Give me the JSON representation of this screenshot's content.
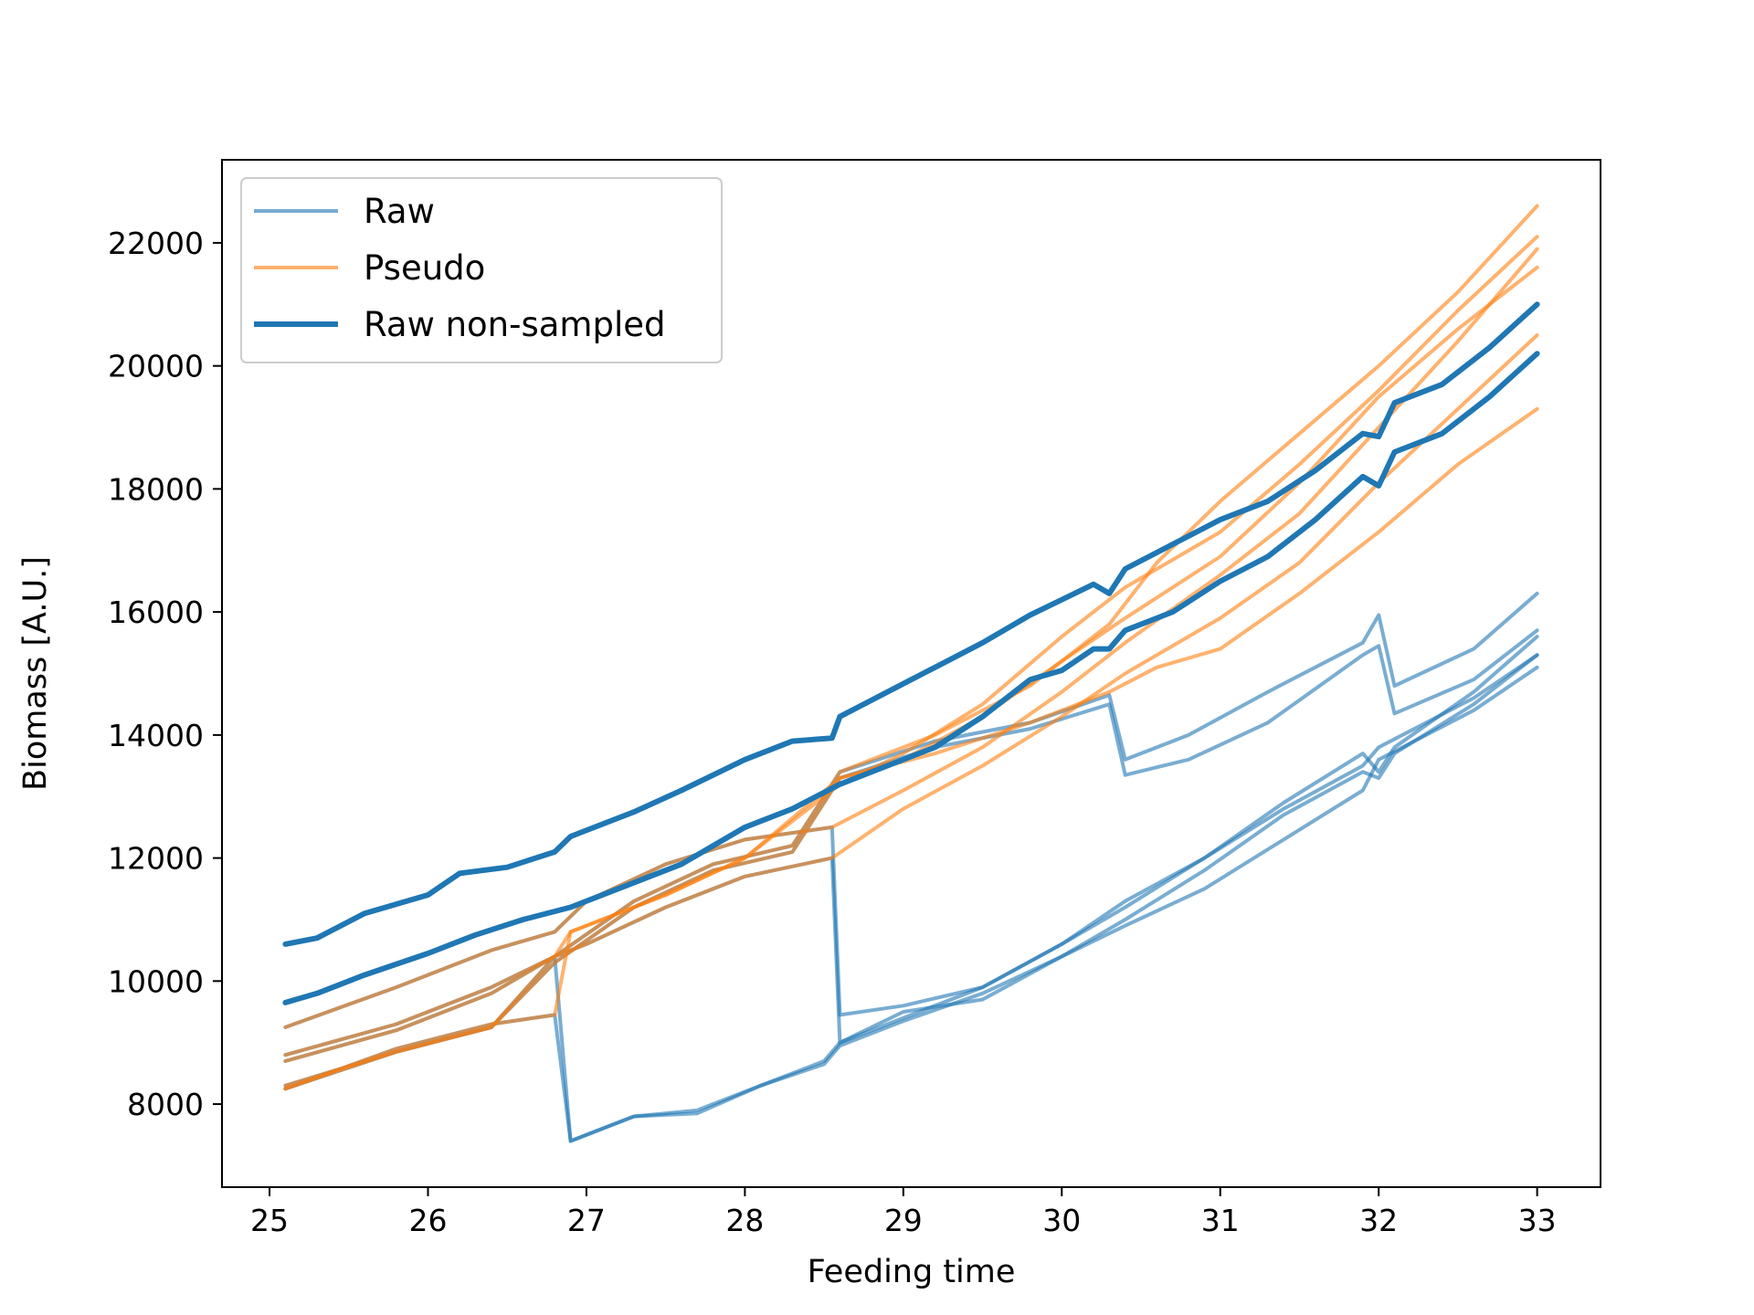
{
  "chart_data": {
    "type": "line",
    "xlabel": "Feeding time",
    "ylabel": "Biomass [A.U.]",
    "xlim": [
      24.7,
      33.4
    ],
    "ylim": [
      6650,
      23350
    ],
    "xticks": [
      25,
      26,
      27,
      28,
      29,
      30,
      31,
      32,
      33
    ],
    "yticks": [
      8000,
      10000,
      12000,
      14000,
      16000,
      18000,
      20000,
      22000
    ],
    "grid": false,
    "legend": {
      "placement": "top-left",
      "entries": [
        {
          "label": "Raw",
          "color": "#77aad4",
          "style": "thin"
        },
        {
          "label": "Pseudo",
          "color": "#fbb06c",
          "style": "thin"
        },
        {
          "label": "Raw non-sampled",
          "color": "#1f77b4",
          "style": "thick"
        }
      ]
    },
    "colors": {
      "raw": "#1f77b4",
      "pseudo": "#ff7f0e",
      "raw_non_sampled": "#1f77b4"
    },
    "series": [
      {
        "name": "Raw",
        "kind": "raw",
        "x": [
          25.1,
          25.8,
          26.4,
          26.8,
          26.9,
          27.3,
          27.7,
          28.1,
          28.5,
          28.6,
          29.0,
          29.5,
          30.0,
          30.4,
          30.9,
          31.4,
          31.9,
          32.0,
          32.1,
          32.6,
          33.0
        ],
        "y": [
          8800,
          9300,
          9900,
          10400,
          7400,
          7800,
          7850,
          8300,
          8700,
          9000,
          9400,
          9900,
          10600,
          11200,
          12000,
          12900,
          13700,
          13400,
          13800,
          14700,
          15600
        ]
      },
      {
        "name": "Raw",
        "kind": "raw",
        "x": [
          25.1,
          25.8,
          26.4,
          26.8,
          26.9,
          27.3,
          27.7,
          28.1,
          28.5,
          28.6,
          29.0,
          29.5,
          30.0,
          30.4,
          30.9,
          31.4,
          31.9,
          32.0,
          32.1,
          32.6,
          33.0
        ],
        "y": [
          8250,
          8900,
          9300,
          9450,
          7400,
          7800,
          7900,
          8300,
          8650,
          8950,
          9350,
          9800,
          10400,
          11000,
          11800,
          12700,
          13400,
          13300,
          13700,
          14500,
          15300
        ]
      },
      {
        "name": "Raw",
        "kind": "raw",
        "x": [
          25.1,
          25.8,
          26.4,
          26.8,
          27.0,
          27.5,
          28.0,
          28.55,
          28.6,
          29.0,
          29.5,
          30.0,
          30.4,
          30.9,
          31.4,
          31.9,
          32.0,
          32.6,
          33.0
        ],
        "y": [
          9250,
          9900,
          10500,
          10800,
          11300,
          11900,
          12300,
          12500,
          9450,
          9600,
          9900,
          10600,
          11300,
          12000,
          12800,
          13500,
          13800,
          14600,
          15300
        ]
      },
      {
        "name": "Raw",
        "kind": "raw",
        "x": [
          25.1,
          25.8,
          26.4,
          26.8,
          27.0,
          27.5,
          28.0,
          28.55,
          28.6,
          29.0,
          29.5,
          30.0,
          30.4,
          30.9,
          31.4,
          31.9,
          32.0,
          32.6,
          33.0
        ],
        "y": [
          8700,
          9200,
          9800,
          10400,
          10600,
          11200,
          11700,
          12000,
          9000,
          9500,
          9700,
          10400,
          10900,
          11500,
          12300,
          13100,
          13600,
          14400,
          15100
        ]
      },
      {
        "name": "Raw",
        "kind": "raw",
        "x": [
          25.1,
          25.8,
          26.4,
          26.8,
          27.3,
          27.8,
          28.3,
          28.6,
          29.2,
          29.8,
          30.3,
          30.4,
          30.8,
          31.3,
          31.9,
          32.0,
          32.1,
          32.6,
          33.0
        ],
        "y": [
          8250,
          8850,
          9250,
          10400,
          11300,
          11900,
          12200,
          13400,
          13900,
          14200,
          14650,
          13600,
          14000,
          14700,
          15500,
          15950,
          14800,
          15400,
          16300
        ]
      },
      {
        "name": "Raw",
        "kind": "raw",
        "x": [
          25.1,
          25.8,
          26.4,
          26.8,
          27.3,
          27.8,
          28.3,
          28.6,
          29.2,
          29.8,
          30.3,
          30.4,
          30.8,
          31.3,
          31.9,
          32.0,
          32.1,
          32.6,
          33.0
        ],
        "y": [
          8300,
          8850,
          9250,
          10300,
          11200,
          11800,
          12100,
          13300,
          13800,
          14100,
          14500,
          13350,
          13600,
          14200,
          15300,
          15450,
          14350,
          14900,
          15700
        ]
      },
      {
        "name": "Pseudo",
        "kind": "pseudo",
        "x": [
          25.1,
          25.8,
          26.4,
          26.8,
          27.0,
          27.5,
          28.0,
          28.55,
          29.0,
          29.5,
          30.0,
          30.4,
          31.0,
          31.5,
          32.0,
          32.5,
          33.0
        ],
        "y": [
          9250,
          9900,
          10500,
          10800,
          11300,
          11900,
          12300,
          12500,
          13100,
          13800,
          14700,
          15500,
          16600,
          17600,
          19000,
          20400,
          21900
        ]
      },
      {
        "name": "Pseudo",
        "kind": "pseudo",
        "x": [
          25.1,
          25.8,
          26.4,
          26.8,
          27.0,
          27.5,
          28.0,
          28.55,
          29.0,
          29.5,
          30.0,
          30.4,
          31.0,
          31.5,
          32.0,
          32.5,
          33.0
        ],
        "y": [
          8700,
          9200,
          9800,
          10400,
          10600,
          11200,
          11700,
          12000,
          12800,
          13500,
          14300,
          15000,
          15900,
          16800,
          18100,
          19300,
          20500
        ]
      },
      {
        "name": "Pseudo",
        "kind": "pseudo",
        "x": [
          25.1,
          25.8,
          26.4,
          26.8,
          26.9,
          27.5,
          28.0,
          28.6,
          29.0,
          29.5,
          30.0,
          30.4,
          31.0,
          31.5,
          32.0,
          32.5,
          33.0
        ],
        "y": [
          8800,
          9300,
          9900,
          10400,
          10800,
          11400,
          12000,
          13200,
          13700,
          14500,
          15600,
          16400,
          17300,
          18400,
          19600,
          20900,
          22100
        ]
      },
      {
        "name": "Pseudo",
        "kind": "pseudo",
        "x": [
          25.1,
          25.8,
          26.4,
          26.8,
          26.9,
          27.5,
          28.0,
          28.6,
          29.0,
          29.5,
          30.0,
          30.4,
          31.0,
          31.5,
          32.0,
          32.5,
          33.0
        ],
        "y": [
          8250,
          8900,
          9300,
          9450,
          10800,
          11400,
          12000,
          13300,
          13600,
          14300,
          15200,
          15900,
          16900,
          18100,
          19500,
          20600,
          21600
        ]
      },
      {
        "name": "Pseudo",
        "kind": "pseudo",
        "x": [
          25.1,
          25.8,
          26.4,
          26.8,
          27.3,
          27.8,
          28.3,
          28.6,
          29.2,
          29.8,
          30.3,
          30.6,
          31.0,
          31.5,
          32.0,
          32.5,
          33.0
        ],
        "y": [
          8250,
          8850,
          9250,
          10400,
          11300,
          11900,
          12200,
          13400,
          14000,
          14800,
          15800,
          16800,
          17800,
          18900,
          20000,
          21200,
          22600
        ]
      },
      {
        "name": "Pseudo",
        "kind": "pseudo",
        "x": [
          25.1,
          25.8,
          26.4,
          26.8,
          27.3,
          27.8,
          28.3,
          28.6,
          29.2,
          29.8,
          30.3,
          30.6,
          31.0,
          31.5,
          32.0,
          32.5,
          33.0
        ],
        "y": [
          8300,
          8850,
          9250,
          10300,
          11200,
          11800,
          12100,
          13300,
          13700,
          14200,
          14700,
          15100,
          15400,
          16300,
          17300,
          18400,
          19300
        ]
      },
      {
        "name": "Raw non-sampled",
        "kind": "nonsampled",
        "x": [
          25.1,
          25.3,
          25.6,
          26.0,
          26.2,
          26.5,
          26.8,
          26.9,
          27.3,
          27.6,
          28.0,
          28.3,
          28.55,
          28.6,
          28.9,
          29.2,
          29.5,
          29.8,
          30.0,
          30.2,
          30.3,
          30.4,
          30.7,
          31.0,
          31.3,
          31.6,
          31.9,
          32.0,
          32.1,
          32.4,
          32.7,
          33.0
        ],
        "y": [
          10600,
          10700,
          11100,
          11400,
          11750,
          11850,
          12100,
          12350,
          12750,
          13100,
          13600,
          13900,
          13950,
          14300,
          14700,
          15100,
          15500,
          15950,
          16200,
          16450,
          16300,
          16700,
          17100,
          17500,
          17800,
          18300,
          18900,
          18850,
          19400,
          19700,
          20300,
          21000
        ]
      },
      {
        "name": "Raw non-sampled",
        "kind": "nonsampled",
        "x": [
          25.1,
          25.3,
          25.6,
          26.0,
          26.3,
          26.6,
          26.9,
          27.2,
          27.6,
          28.0,
          28.3,
          28.6,
          28.9,
          29.2,
          29.5,
          29.8,
          30.0,
          30.2,
          30.3,
          30.4,
          30.7,
          31.0,
          31.3,
          31.6,
          31.9,
          32.0,
          32.1,
          32.4,
          32.7,
          33.0
        ],
        "y": [
          9650,
          9800,
          10100,
          10450,
          10750,
          11000,
          11200,
          11500,
          11900,
          12500,
          12800,
          13200,
          13500,
          13800,
          14300,
          14900,
          15050,
          15400,
          15400,
          15700,
          16000,
          16500,
          16900,
          17500,
          18200,
          18050,
          18600,
          18900,
          19500,
          20200
        ]
      }
    ]
  }
}
